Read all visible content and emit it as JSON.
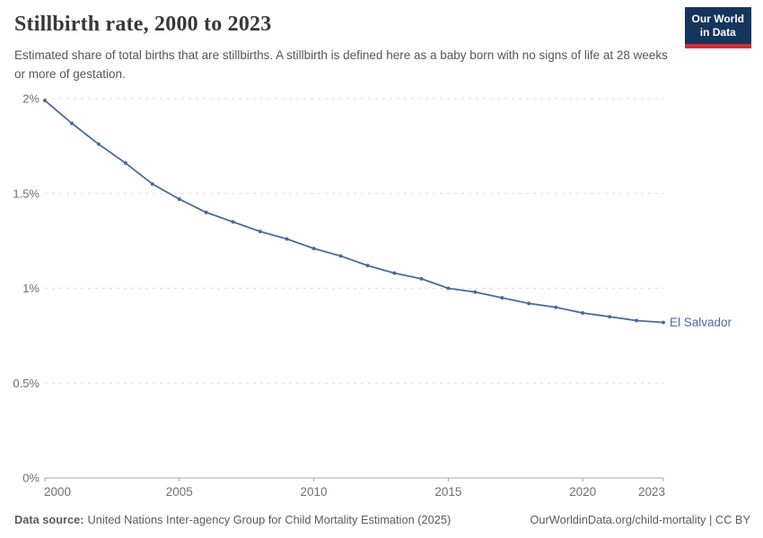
{
  "header": {
    "title": "Stillbirth rate, 2000 to 2023",
    "subtitle": "Estimated share of total births that are stillbirths. A stillbirth is defined here as a baby born with no signs of life at 28 weeks or more of gestation.",
    "logo": {
      "line1": "Our World",
      "line2": "in Data"
    }
  },
  "chart_data": {
    "type": "line",
    "title": "Stillbirth rate, 2000 to 2023",
    "xlabel": "",
    "ylabel": "",
    "x": [
      2000,
      2001,
      2002,
      2003,
      2004,
      2005,
      2006,
      2007,
      2008,
      2009,
      2010,
      2011,
      2012,
      2013,
      2014,
      2015,
      2016,
      2017,
      2018,
      2019,
      2020,
      2021,
      2022,
      2023
    ],
    "series": [
      {
        "name": "El Salvador",
        "values": [
          1.99,
          1.87,
          1.76,
          1.66,
          1.55,
          1.47,
          1.4,
          1.35,
          1.3,
          1.26,
          1.21,
          1.17,
          1.12,
          1.08,
          1.05,
          1.0,
          0.98,
          0.95,
          0.92,
          0.9,
          0.87,
          0.85,
          0.83,
          0.82
        ]
      }
    ],
    "ylim": [
      0,
      2
    ],
    "yticks": [
      {
        "value": 0,
        "label": "0%"
      },
      {
        "value": 0.5,
        "label": "0.5%"
      },
      {
        "value": 1,
        "label": "1%"
      },
      {
        "value": 1.5,
        "label": "1.5%"
      },
      {
        "value": 2,
        "label": "2%"
      }
    ],
    "xticks": [
      2000,
      2005,
      2010,
      2015,
      2020,
      2023
    ],
    "grid": "dashed-horizontal",
    "legend": "end-of-line-label"
  },
  "footer": {
    "source_label": "Data source:",
    "source_text": "United Nations Inter-agency Group for Child Mortality Estimation (2025)",
    "link": "OurWorldinData.org/child-mortality | CC BY"
  },
  "colors": {
    "line": "#4c6a9c",
    "grid": "#dcdcdc",
    "axis": "#a8a8a8",
    "tick_text": "#6f6f6f",
    "title_text": "#383838",
    "subtitle_text": "#565656",
    "logo_bg": "#14355c",
    "logo_accent": "#c9303e"
  }
}
